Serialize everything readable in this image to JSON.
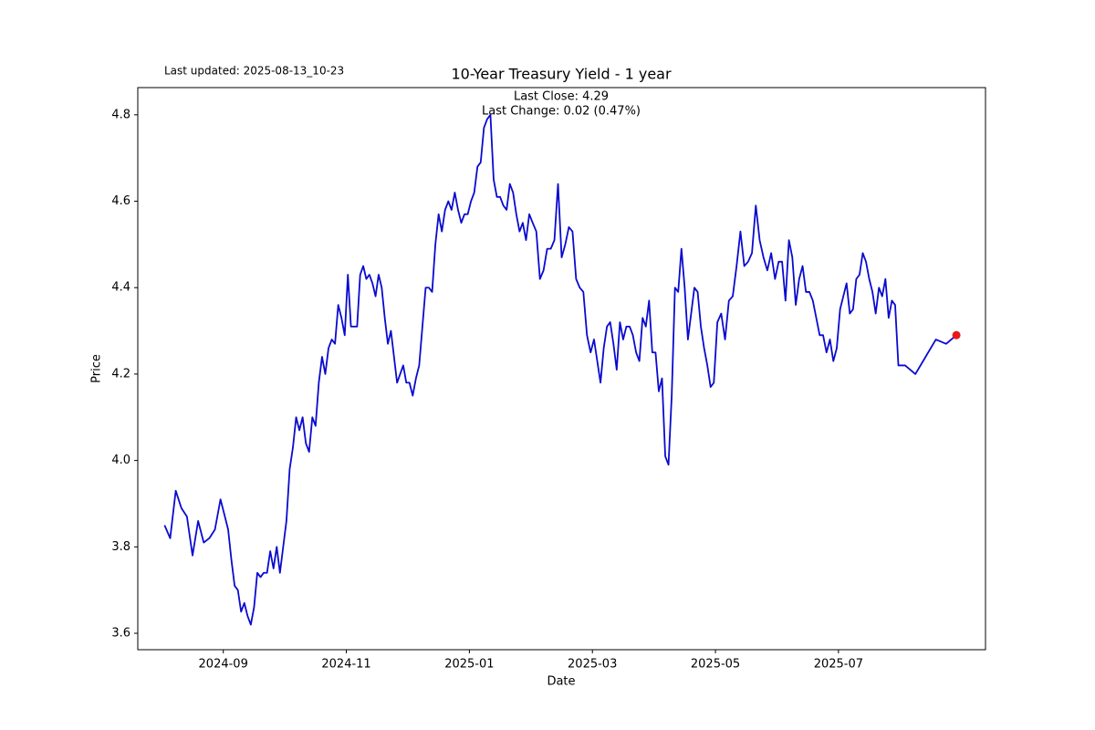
{
  "chart_data": {
    "type": "line",
    "title": "10-Year Treasury Yield - 1 year",
    "subtitle": "Last updated: 2025-08-13_10-23",
    "annotations": [
      "Last Close: 4.29",
      "Last Change: 0.02 (0.47%)"
    ],
    "xlabel": "Date",
    "ylabel": "Price",
    "ylim": [
      3.562,
      4.863
    ],
    "yticks": [
      3.6,
      3.8,
      {
        "value": 4,
        "label": "4.0"
      },
      4.2,
      4.4,
      4.6,
      4.8
    ],
    "xticks": [
      "2024-09",
      "2024-11",
      "2025-01",
      "2025-03",
      "2025-05",
      "2025-07"
    ],
    "last_point_color": "#e8191a",
    "x": [
      "2024-08",
      "2024-08",
      "2024-08",
      "2024-08",
      "2024-08",
      "2024-08",
      "2024-08",
      "2024-08",
      "2024-08",
      "2024-08",
      "2024-08",
      "2024-09",
      "2024-09",
      "2024-09",
      "2024-09",
      "2024-09",
      "2024-09",
      "2024-09",
      "2024-09",
      "2024-09",
      "2024-09",
      "2024-09",
      "2024-09",
      "2024-09",
      "2024-09",
      "2024-09",
      "2024-09",
      "2024-09",
      "2024-09",
      "2024-09",
      "2024-10",
      "2024-10",
      "2024-10",
      "2024-10",
      "2024-10",
      "2024-10",
      "2024-10",
      "2024-10",
      "2024-10",
      "2024-10",
      "2024-10",
      "2024-10",
      "2024-10",
      "2024-10",
      "2024-10",
      "2024-10",
      "2024-10",
      "2024-10",
      "2024-10",
      "2024-11",
      "2024-11",
      "2024-11",
      "2024-11",
      "2024-11",
      "2024-11",
      "2024-11",
      "2024-11",
      "2024-11",
      "2024-11",
      "2024-11",
      "2024-11",
      "2024-11",
      "2024-11",
      "2024-11",
      "2024-11",
      "2024-11",
      "2024-11",
      "2024-11",
      "2024-11",
      "2024-12",
      "2024-12",
      "2024-12",
      "2024-12",
      "2024-12",
      "2024-12",
      "2024-12",
      "2024-12",
      "2024-12",
      "2024-12",
      "2024-12",
      "2024-12",
      "2024-12",
      "2024-12",
      "2024-12",
      "2024-12",
      "2024-12",
      "2024-12",
      "2024-12",
      "2025-01",
      "2025-01",
      "2025-01",
      "2025-01",
      "2025-01",
      "2025-01",
      "2025-01",
      "2025-01",
      "2025-01",
      "2025-01",
      "2025-01",
      "2025-01",
      "2025-01",
      "2025-01",
      "2025-01",
      "2025-01",
      "2025-01",
      "2025-01",
      "2025-01",
      "2025-02",
      "2025-02",
      "2025-02",
      "2025-02",
      "2025-02",
      "2025-02",
      "2025-02",
      "2025-02",
      "2025-02",
      "2025-02",
      "2025-02",
      "2025-02",
      "2025-02",
      "2025-02",
      "2025-02",
      "2025-02",
      "2025-02",
      "2025-03",
      "2025-03",
      "2025-03",
      "2025-03",
      "2025-03",
      "2025-03",
      "2025-03",
      "2025-03",
      "2025-03",
      "2025-03",
      "2025-03",
      "2025-03",
      "2025-03",
      "2025-03",
      "2025-03",
      "2025-03",
      "2025-03",
      "2025-03",
      "2025-03",
      "2025-04",
      "2025-04",
      "2025-04",
      "2025-04",
      "2025-04",
      "2025-04",
      "2025-04",
      "2025-04",
      "2025-04",
      "2025-04",
      "2025-04",
      "2025-04",
      "2025-04",
      "2025-04",
      "2025-04",
      "2025-04",
      "2025-04",
      "2025-04",
      "2025-04",
      "2025-05",
      "2025-05",
      "2025-05",
      "2025-05",
      "2025-05",
      "2025-05",
      "2025-05",
      "2025-05",
      "2025-05",
      "2025-05",
      "2025-05",
      "2025-05",
      "2025-05",
      "2025-05",
      "2025-05",
      "2025-05",
      "2025-06",
      "2025-06",
      "2025-06",
      "2025-06",
      "2025-06",
      "2025-06",
      "2025-06",
      "2025-06",
      "2025-06",
      "2025-06",
      "2025-06",
      "2025-06",
      "2025-06",
      "2025-06",
      "2025-06",
      "2025-06",
      "2025-06",
      "2025-06",
      "2025-07",
      "2025-07",
      "2025-07",
      "2025-07",
      "2025-07",
      "2025-07",
      "2025-07",
      "2025-07",
      "2025-07",
      "2025-07",
      "2025-07",
      "2025-07",
      "2025-07",
      "2025-07",
      "2025-07",
      "2025-07",
      "2025-07",
      "2025-07",
      "2025-07",
      "2025-08",
      "2025-08",
      "2025-08",
      "2025-08",
      "2025-08",
      "2025-08"
    ],
    "series": [
      {
        "name": "10-Year Treasury Yield",
        "color": "#0a0ad0",
        "values": [
          3.85,
          3.82,
          3.93,
          3.89,
          3.87,
          3.78,
          3.86,
          3.81,
          3.82,
          3.84,
          3.91,
          3.87,
          3.84,
          3.77,
          3.71,
          3.7,
          3.65,
          3.67,
          3.64,
          3.62,
          3.66,
          3.74,
          3.73,
          3.74,
          3.74,
          3.79,
          3.75,
          3.8,
          3.74,
          3.8,
          3.86,
          3.98,
          4.03,
          4.1,
          4.07,
          4.1,
          4.04,
          4.02,
          4.1,
          4.08,
          4.18,
          4.24,
          4.2,
          4.26,
          4.28,
          4.27,
          4.36,
          4.33,
          4.29,
          4.43,
          4.31,
          4.31,
          4.31,
          4.43,
          4.45,
          4.42,
          4.43,
          4.41,
          4.38,
          4.43,
          4.4,
          4.33,
          4.27,
          4.3,
          4.24,
          4.18,
          4.2,
          4.22,
          4.18,
          4.18,
          4.15,
          4.19,
          4.22,
          4.31,
          4.4,
          4.4,
          4.39,
          4.5,
          4.57,
          4.53,
          4.58,
          4.6,
          4.58,
          4.62,
          4.58,
          4.55,
          4.57,
          4.57,
          4.6,
          4.62,
          4.68,
          4.69,
          4.77,
          4.79,
          4.8,
          4.65,
          4.61,
          4.61,
          4.59,
          4.58,
          4.64,
          4.62,
          4.57,
          4.53,
          4.55,
          4.51,
          4.57,
          4.55,
          4.53,
          4.42,
          4.44,
          4.49,
          4.49,
          4.51,
          4.64,
          4.47,
          4.5,
          4.54,
          4.53,
          4.42,
          4.4,
          4.39,
          4.29,
          4.25,
          4.28,
          4.23,
          4.18,
          4.26,
          4.31,
          4.32,
          4.27,
          4.21,
          4.32,
          4.28,
          4.31,
          4.31,
          4.29,
          4.25,
          4.23,
          4.33,
          4.31,
          4.37,
          4.25,
          4.25,
          4.16,
          4.19,
          4.01,
          3.99,
          4.15,
          4.4,
          4.39,
          4.49,
          4.4,
          4.28,
          4.34,
          4.4,
          4.39,
          4.31,
          4.26,
          4.22,
          4.17,
          4.18,
          4.32,
          4.34,
          4.28,
          4.37,
          4.38,
          4.45,
          4.53,
          4.45,
          4.46,
          4.48,
          4.59,
          4.51,
          4.47,
          4.44,
          4.48,
          4.42,
          4.46,
          4.46,
          4.37,
          4.51,
          4.47,
          4.36,
          4.42,
          4.45,
          4.39,
          4.39,
          4.37,
          4.33,
          4.29,
          4.29,
          4.25,
          4.28,
          4.23,
          4.26,
          4.35,
          4.38,
          4.41,
          4.34,
          4.35,
          4.42,
          4.43,
          4.48,
          4.46,
          4.42,
          4.39,
          4.34,
          4.4,
          4.38,
          4.42,
          4.33,
          4.37,
          4.36,
          4.22,
          4.22,
          4.2,
          4.24,
          4.28,
          4.27,
          4.29
        ]
      }
    ]
  }
}
